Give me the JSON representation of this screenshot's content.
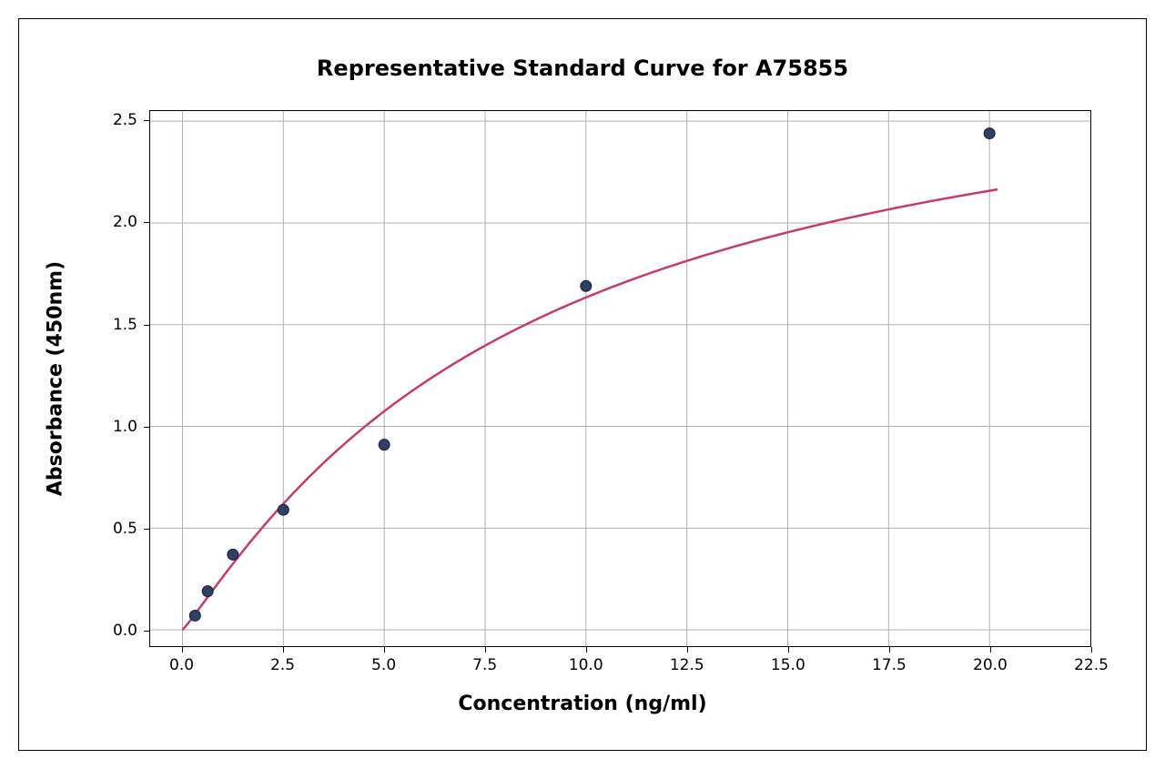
{
  "chart": {
    "type": "scatter-with-curve",
    "title": "Representative Standard Curve for A75855",
    "title_fontsize": 24,
    "title_fontweight": "bold",
    "xlabel": "Concentration (ng/ml)",
    "ylabel": "Absorbance (450nm)",
    "label_fontsize": 22,
    "label_fontweight": "bold",
    "tick_fontsize": 17,
    "background_color": "#ffffff",
    "border_color": "#000000",
    "grid_color": "#b0b0b0",
    "grid_on": true,
    "xlim": [
      -0.8,
      22.5
    ],
    "ylim": [
      -0.08,
      2.55
    ],
    "xticks": [
      0.0,
      2.5,
      5.0,
      7.5,
      10.0,
      12.5,
      15.0,
      17.5,
      20.0,
      22.5
    ],
    "yticks": [
      0.0,
      0.5,
      1.0,
      1.5,
      2.0,
      2.5
    ],
    "xtick_labels": [
      "0.0",
      "2.5",
      "5.0",
      "7.5",
      "10.0",
      "12.5",
      "15.0",
      "17.5",
      "20.0",
      "22.5"
    ],
    "ytick_labels": [
      "0.0",
      "0.5",
      "1.0",
      "1.5",
      "2.0",
      "2.5"
    ],
    "data_points": {
      "x": [
        0.3125,
        0.625,
        1.25,
        2.5,
        5.0,
        10.0,
        20.0
      ],
      "y": [
        0.07,
        0.19,
        0.37,
        0.59,
        0.91,
        1.69,
        2.44
      ]
    },
    "marker_color": "#2d4262",
    "marker_border_color": "#1a1a3a",
    "marker_size": 12,
    "curve_color": "#c63a6f",
    "curve_width": 2.5,
    "curve_params": {
      "comment": "4-parameter logistic fit approximation",
      "a": 0.0,
      "b": 1.1,
      "c": 8.5,
      "d": 3.0
    }
  }
}
